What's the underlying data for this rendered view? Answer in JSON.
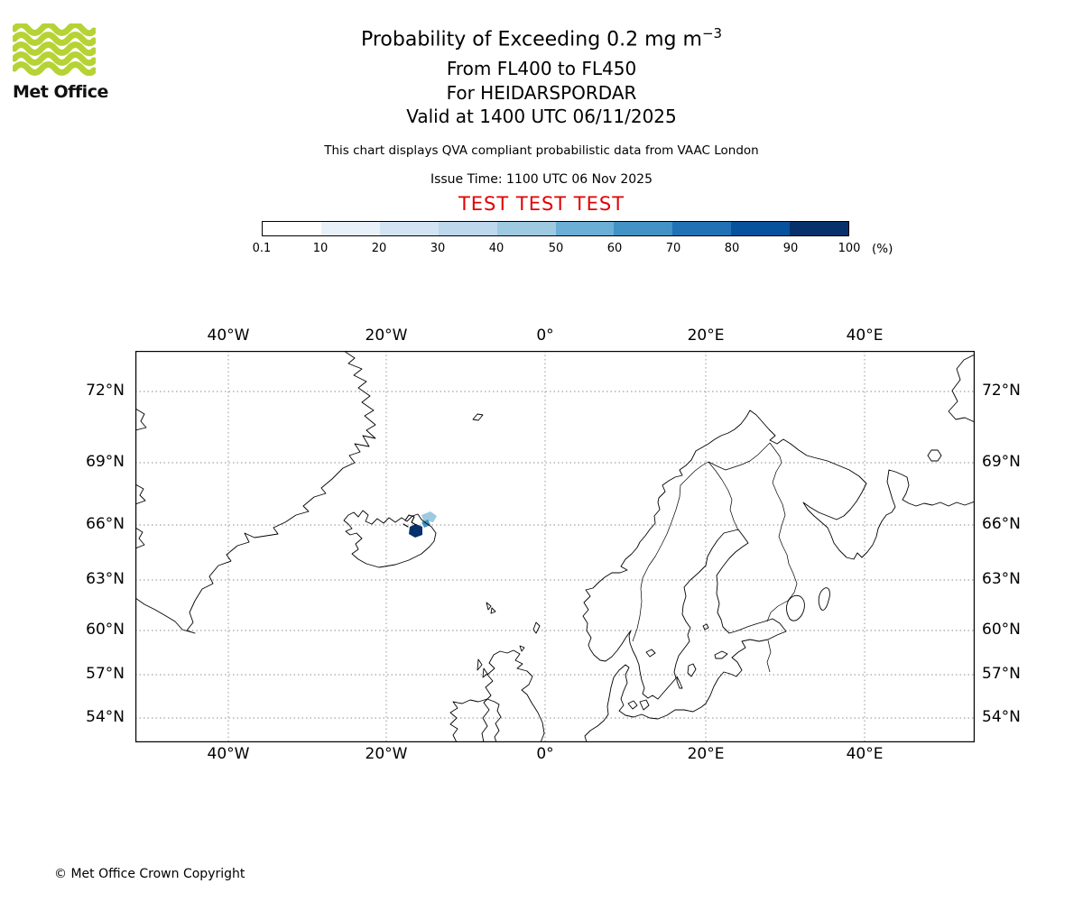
{
  "logo": {
    "text": "Met Office",
    "wave_color": "#b5d334"
  },
  "header": {
    "title_prefix": "Probability of Exceeding 0.2 mg m",
    "title_exponent": "−3",
    "flight_levels": "From FL400 to FL450",
    "volcano": "For HEIDARSPORDAR",
    "valid_time": "Valid at 1400 UTC 06/11/2025",
    "note": "This chart displays QVA compliant probabilistic data from VAAC London",
    "issue_time": "Issue Time: 1100 UTC 06 Nov 2025",
    "test_banner": "TEST TEST TEST",
    "test_color": "#e10000"
  },
  "colorbar": {
    "tick_labels": [
      "0.1",
      "10",
      "20",
      "30",
      "40",
      "50",
      "60",
      "70",
      "80",
      "90",
      "100"
    ],
    "unit_label": "(%)",
    "colors": [
      "#ffffff",
      "#e8f0f9",
      "#d2e3f3",
      "#bdd7ec",
      "#9ecae1",
      "#6baed6",
      "#4292c6",
      "#2171b5",
      "#08519c",
      "#08306b"
    ]
  },
  "map": {
    "x_tick_labels": [
      "40°W",
      "20°W",
      "0°",
      "20°E",
      "40°E"
    ],
    "y_tick_labels": [
      "72°N",
      "69°N",
      "66°N",
      "63°N",
      "60°N",
      "57°N",
      "54°N"
    ],
    "ash_patches": [
      {
        "color": "#08306b"
      },
      {
        "color": "#9ecae1"
      },
      {
        "color": "#4292c6"
      }
    ]
  },
  "footer": {
    "copyright": "© Met Office Crown Copyright"
  }
}
